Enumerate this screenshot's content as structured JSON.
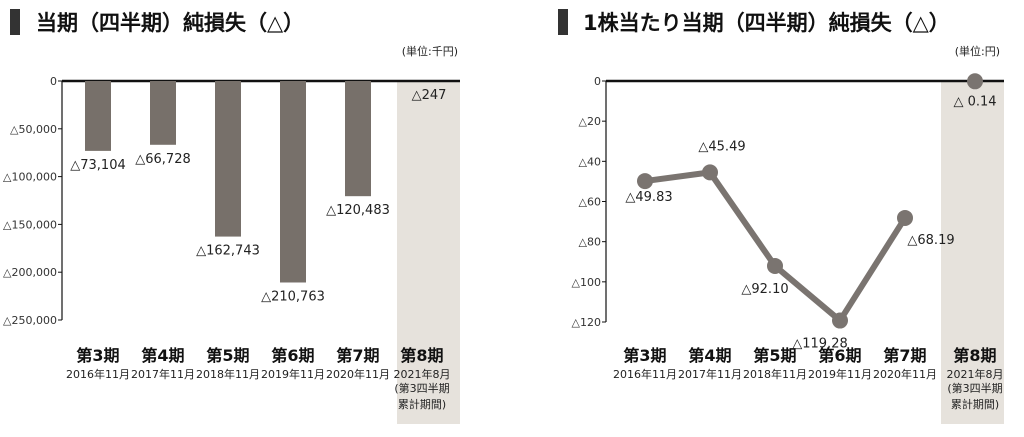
{
  "colors": {
    "bar": "#77706a",
    "line": "#7a7470",
    "highlight": "#e6e2dc",
    "axis": "#111111",
    "titleMark": "#333333"
  },
  "chart_data": [
    {
      "type": "bar",
      "title": "当期（四半期）純損失（△）",
      "unit": "(単位:千円)",
      "categories": [
        "第3期",
        "第4期",
        "第5期",
        "第6期",
        "第7期",
        "第8期"
      ],
      "sublabels": [
        "2016年11月",
        "2017年11月",
        "2018年11月",
        "2019年11月",
        "2020年11月",
        "2021年8月"
      ],
      "sublabel_extra": [
        "(第3四半期",
        "累計期間)"
      ],
      "values": [
        -73104,
        -66728,
        -162743,
        -210763,
        -120483,
        -247
      ],
      "value_labels": [
        "△73,104",
        "△66,728",
        "△162,743",
        "△210,763",
        "△120,483",
        "△247"
      ],
      "ylim": [
        -250000,
        0
      ],
      "yticks": [
        0,
        -50000,
        -100000,
        -150000,
        -200000,
        -250000
      ],
      "ytick_labels": [
        "0",
        "△50,000",
        "△100,000",
        "△150,000",
        "△200,000",
        "△250,000"
      ],
      "highlight_index": 5
    },
    {
      "type": "line",
      "title": "1株当たり当期（四半期）純損失（△）",
      "unit": "(単位:円)",
      "categories": [
        "第3期",
        "第4期",
        "第5期",
        "第6期",
        "第7期",
        "第8期"
      ],
      "sublabels": [
        "2016年11月",
        "2017年11月",
        "2018年11月",
        "2019年11月",
        "2020年11月",
        "2021年8月"
      ],
      "sublabel_extra": [
        "(第3四半期",
        "累計期間)"
      ],
      "values": [
        -49.83,
        -45.49,
        -92.1,
        -119.28,
        -68.19,
        -0.14
      ],
      "value_labels": [
        "△49.83",
        "△45.49",
        "△92.10",
        "△119.28",
        "△68.19",
        "△ 0.14"
      ],
      "ylim": [
        -120,
        0
      ],
      "yticks": [
        0,
        -20,
        -40,
        -60,
        -80,
        -100,
        -120
      ],
      "ytick_labels": [
        "0",
        "△20",
        "△40",
        "△60",
        "△80",
        "△100",
        "△120"
      ],
      "highlight_index": 5,
      "connected_through": 4
    }
  ]
}
